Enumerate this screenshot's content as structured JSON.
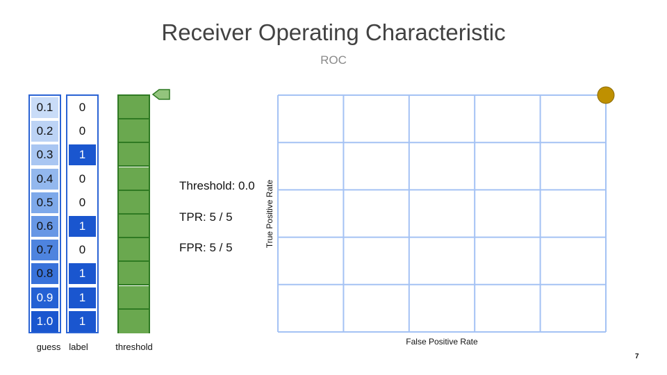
{
  "title": "Receiver Operating Characteristic",
  "subtitle": "ROC",
  "columns": {
    "guess_label": "guess",
    "label_label": "label",
    "threshold_label": "threshold"
  },
  "guesses": [
    "0.1",
    "0.2",
    "0.3",
    "0.4",
    "0.5",
    "0.6",
    "0.7",
    "0.8",
    "0.9",
    "1.0"
  ],
  "labels": [
    "0",
    "0",
    "1",
    "0",
    "0",
    "1",
    "0",
    "1",
    "1",
    "1"
  ],
  "guess_colors": [
    "#c9dcf8",
    "#bcd3f5",
    "#a9c6f2",
    "#93b8ee",
    "#7ea9ea",
    "#6797e5",
    "#4e84df",
    "#3872da",
    "#2461d4",
    "#1a56cf"
  ],
  "label_one_color": "#1a56cf",
  "threshold_color": "#6aa84f",
  "threshold_marker_color": "#93c47d",
  "info": {
    "threshold": "Threshold: 0.0",
    "tpr": "TPR: 5 / 5",
    "fpr": "FPR: 5 / 5"
  },
  "chart_data": {
    "type": "scatter",
    "xlabel": "False Positive Rate",
    "ylabel": "True Positive Rate",
    "xlim": [
      0,
      1
    ],
    "ylim": [
      0,
      1
    ],
    "grid": true,
    "grid_divisions": 5,
    "grid_color": "#a4c2f4",
    "point_color": "#bf9000",
    "points": [
      {
        "x": 1.0,
        "y": 1.0
      }
    ]
  },
  "page_number": "7"
}
